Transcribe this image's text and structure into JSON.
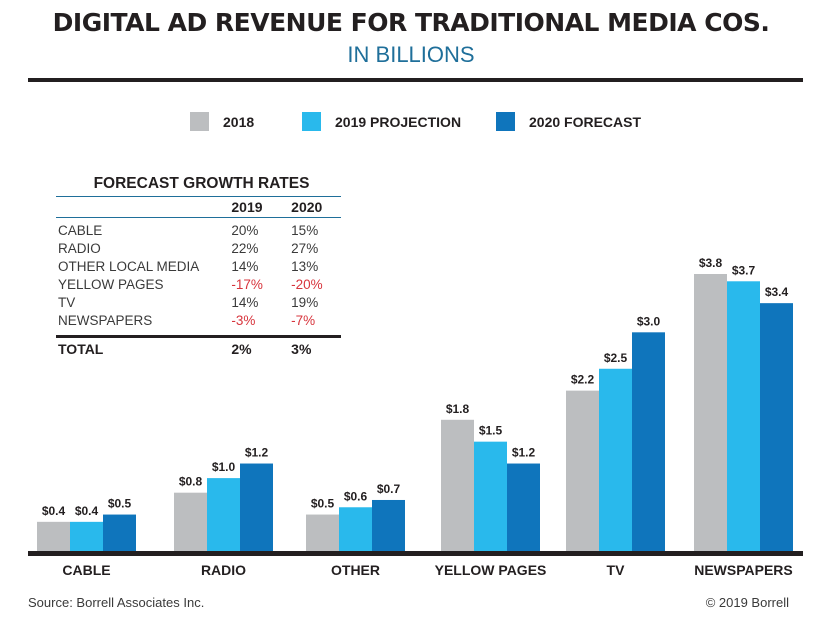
{
  "chart_data": {
    "type": "bar",
    "title": "DIGITAL AD REVENUE FOR TRADITIONAL MEDIA COS.",
    "subtitle": "IN BILLIONS",
    "xlabel": "",
    "ylabel": "",
    "ylim": [
      0,
      4.0
    ],
    "grid": false,
    "legend_position": "top-center",
    "value_prefix": "$",
    "categories": [
      "CABLE",
      "RADIO",
      "OTHER",
      "YELLOW PAGES",
      "TV",
      "NEWSPAPERS"
    ],
    "series": [
      {
        "name": "2018",
        "color": "#bcbec0",
        "values": [
          0.4,
          0.8,
          0.5,
          1.8,
          2.2,
          3.8
        ],
        "labels": [
          "$0.4",
          "$0.8",
          "$0.5",
          "$1.8",
          "$2.2",
          "$3.8"
        ]
      },
      {
        "name": "2019 PROJECTION",
        "color": "#29b9ec",
        "values": [
          0.4,
          1.0,
          0.6,
          1.5,
          2.5,
          3.7
        ],
        "labels": [
          "$0.4",
          "$1.0",
          "$0.6",
          "$1.5",
          "$2.5",
          "$3.7"
        ]
      },
      {
        "name": "2020 FORECAST",
        "color": "#0f75bc",
        "values": [
          0.5,
          1.2,
          0.7,
          1.2,
          3.0,
          3.4
        ],
        "labels": [
          "$0.5",
          "$1.2",
          "$0.7",
          "$1.2",
          "$3.0",
          "$3.4"
        ]
      }
    ]
  },
  "growth_table": {
    "title": "FORECAST GROWTH RATES",
    "columns": [
      "",
      "2019",
      "2020"
    ],
    "rows": [
      {
        "label": "CABLE",
        "y2019": "20%",
        "y2020": "15%",
        "neg2019": false,
        "neg2020": false
      },
      {
        "label": "RADIO",
        "y2019": "22%",
        "y2020": "27%",
        "neg2019": false,
        "neg2020": false
      },
      {
        "label": "OTHER LOCAL MEDIA",
        "y2019": "14%",
        "y2020": "13%",
        "neg2019": false,
        "neg2020": false
      },
      {
        "label": "YELLOW PAGES",
        "y2019": "-17%",
        "y2020": "-20%",
        "neg2019": true,
        "neg2020": true
      },
      {
        "label": "TV",
        "y2019": "14%",
        "y2020": "19%",
        "neg2019": false,
        "neg2020": false
      },
      {
        "label": "NEWSPAPERS",
        "y2019": "-3%",
        "y2020": "-7%",
        "neg2019": true,
        "neg2020": true
      }
    ],
    "total": {
      "label": "TOTAL",
      "y2019": "2%",
      "y2020": "3%"
    }
  },
  "footer": {
    "source": "Source:  Borrell Associates Inc.",
    "copyright": "© 2019 Borrell"
  }
}
